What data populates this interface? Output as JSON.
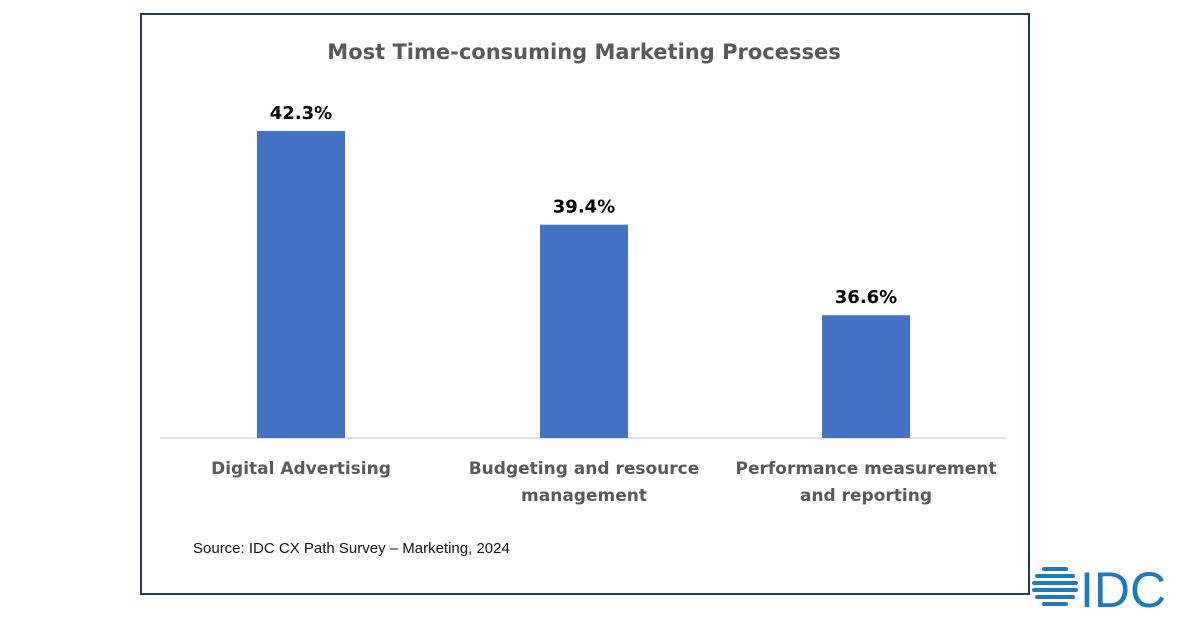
{
  "chart_data": {
    "type": "bar",
    "title": "Most Time-consuming Marketing Processes",
    "categories": [
      [
        "Digital Advertising"
      ],
      [
        "Budgeting and resource",
        "management"
      ],
      [
        "Performance measurement",
        "and reporting"
      ]
    ],
    "values": [
      42.3,
      39.4,
      36.6
    ],
    "data_labels": [
      "42.3%",
      "39.4%",
      "36.6%"
    ],
    "xlabel": "",
    "ylabel": "",
    "ylim": [
      32.8,
      44
    ],
    "grid": false,
    "bar_color": "#4472c4"
  },
  "source": "Source: IDC CX Path Survey – Marketing, 2024",
  "logo": {
    "text": "IDC",
    "color": "#1f78c1"
  },
  "frame_color": "#1f3864"
}
